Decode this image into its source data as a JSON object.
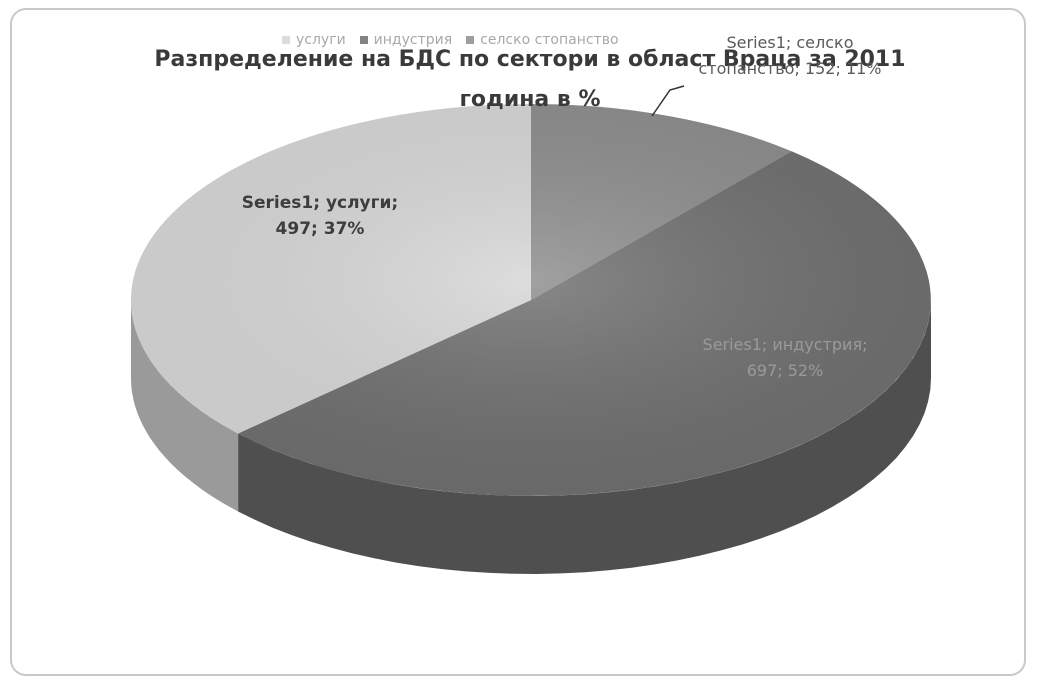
{
  "chart_data": {
    "type": "pie",
    "title": "Разпределение на БДС по сектори в област Враца за 2011 година в %",
    "series_name": "Series1",
    "categories": [
      "селско стопанство",
      "индустрия",
      "услуги"
    ],
    "values": [
      152,
      697,
      497
    ],
    "percentages": [
      11,
      52,
      37
    ],
    "legend_position": "top",
    "labels": {
      "agri": "Series1; селско стопанство; 152; 11%",
      "industry": "Series1; индустрия; 697; 52%",
      "services": "Series1; услуги; 497; 37%"
    },
    "colors": {
      "agri": "#8c8c8c",
      "industry": "#6e6e6e",
      "services": "#d6d6d6"
    }
  }
}
